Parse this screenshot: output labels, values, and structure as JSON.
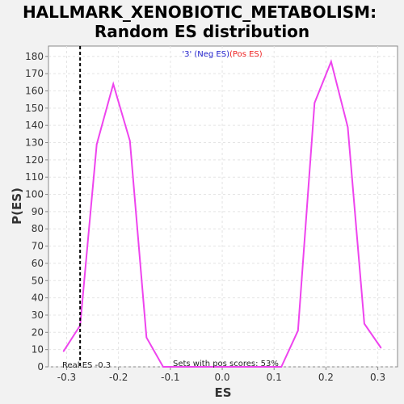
{
  "chart_data": {
    "type": "line",
    "title_line1": "HALLMARK_XENOBIOTIC_METABOLISM:",
    "title_line2": "Random ES distribution",
    "xlabel": "ES",
    "ylabel": "P(ES)",
    "xlim": [
      -0.335,
      0.338
    ],
    "ylim": [
      0,
      186
    ],
    "xticks": [
      -0.3,
      -0.2,
      -0.1,
      0.0,
      0.1,
      0.2,
      0.3
    ],
    "xtick_labels": [
      "-0.3",
      "-0.2",
      "-0.1",
      "0.0",
      "0.1",
      "0.2",
      "0.3"
    ],
    "yticks": [
      0,
      10,
      20,
      30,
      40,
      50,
      60,
      70,
      80,
      90,
      100,
      110,
      120,
      130,
      140,
      150,
      160,
      170,
      180
    ],
    "ytick_labels": [
      "0",
      "10",
      "20",
      "30",
      "40",
      "50",
      "60",
      "70",
      "80",
      "90",
      "100",
      "110",
      "120",
      "130",
      "140",
      "150",
      "160",
      "170",
      "180"
    ],
    "grid": true,
    "legend": {
      "placement": "top-center",
      "neg_label": "'3' (Neg ES)",
      "pos_label": "(Pos ES)",
      "neg_color": "#2222cc",
      "pos_color": "#ee2222"
    },
    "series": [
      {
        "color": "#ee44ee",
        "x": [
          -0.306,
          -0.274,
          -0.242,
          -0.21,
          -0.178,
          -0.146,
          -0.114,
          0.114,
          0.146,
          0.178,
          0.21,
          0.242,
          0.274,
          0.306
        ],
        "y": [
          9,
          24,
          129,
          164,
          131,
          17,
          0,
          0,
          21,
          153,
          177,
          139,
          25,
          11
        ]
      }
    ],
    "real_es": -0.274,
    "real_es_label": "Real ES -0.3",
    "annotation": "Sets with pos scores: 53%"
  }
}
